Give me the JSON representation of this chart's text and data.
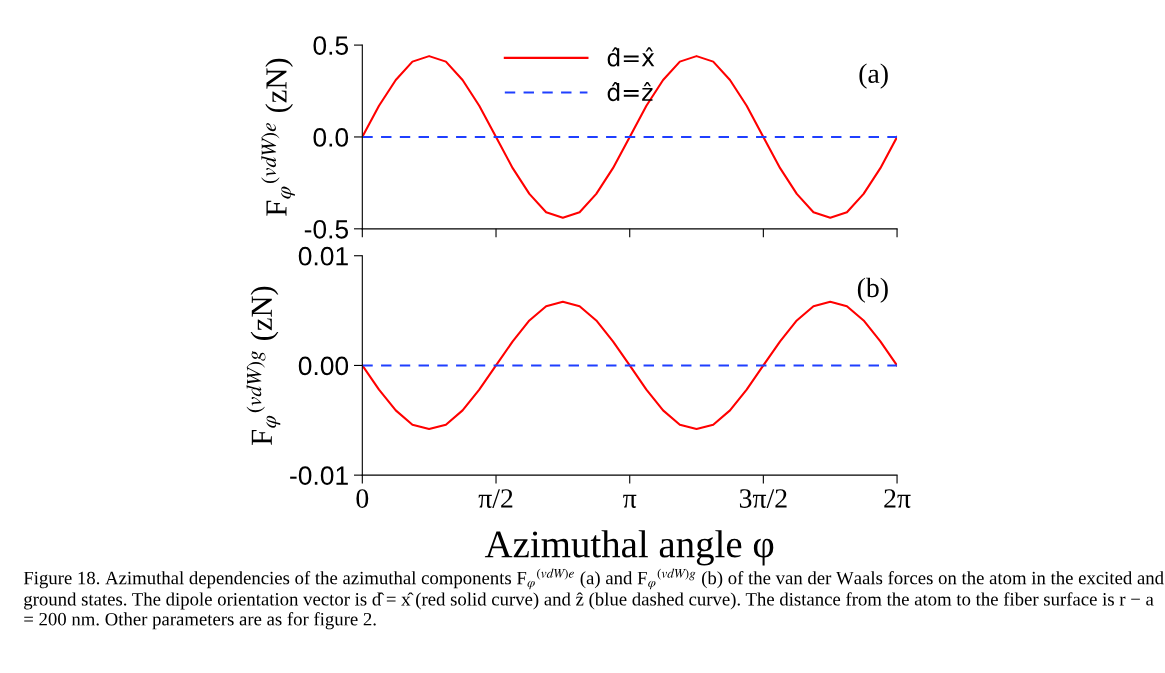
{
  "chart_data": [
    {
      "type": "line",
      "ylabel": "F$_{φ}$$^{(vdW)e}$ (zN)",
      "annotations": [
        "(a)"
      ],
      "x": [
        0,
        0.196,
        0.393,
        0.589,
        0.785,
        0.982,
        1.178,
        1.374,
        1.571,
        1.767,
        1.963,
        2.16,
        2.356,
        2.553,
        2.749,
        2.945,
        3.142,
        3.338,
        3.534,
        3.731,
        3.927,
        4.123,
        4.32,
        4.516,
        4.712,
        4.909,
        5.105,
        5.301,
        5.498,
        5.694,
        5.89,
        6.087,
        6.283
      ],
      "series": [
        {
          "name": "d̂=x̂",
          "color": "#ff0000",
          "line_style": "solid",
          "values": [
            0,
            0.17,
            0.31,
            0.41,
            0.44,
            0.41,
            0.31,
            0.17,
            0,
            -0.17,
            -0.31,
            -0.41,
            -0.44,
            -0.41,
            -0.31,
            -0.17,
            0,
            0.17,
            0.31,
            0.41,
            0.44,
            0.41,
            0.31,
            0.17,
            0,
            -0.17,
            -0.31,
            -0.41,
            -0.44,
            -0.41,
            -0.31,
            -0.17,
            0
          ]
        },
        {
          "name": "d̂=ẑ",
          "color": "#1f3fff",
          "line_style": "dashed",
          "values": [
            0,
            0,
            0,
            0,
            0,
            0,
            0,
            0,
            0,
            0,
            0,
            0,
            0,
            0,
            0,
            0,
            0,
            0,
            0,
            0,
            0,
            0,
            0,
            0,
            0,
            0,
            0,
            0,
            0,
            0,
            0,
            0,
            0
          ]
        }
      ],
      "xlim": [
        0,
        6.283
      ],
      "xticks": [
        0,
        1.571,
        3.142,
        4.712,
        6.283
      ],
      "ylim": [
        -0.5,
        0.5
      ],
      "yticks": [
        {
          "value": -0.5,
          "label": "-0.5"
        },
        {
          "value": 0,
          "label": "0.0"
        },
        {
          "value": 0.5,
          "label": "0.5"
        }
      ],
      "tick_labels": "y",
      "legend": "top center",
      "grid": false
    },
    {
      "type": "line",
      "ylabel": "F$_{φ}$$^{(vdW)g}$ (zN)",
      "xlabel": "Azimuthal angle φ",
      "annotations": [
        "(b)",
        "Figure 18. Azimuthal dependencies of the azimuthal components F$_{φ}$$^{(vdW)e}$ (a) and F$_{φ}$$^{(vdW)g}$ (b) of the van der Waals forces on the atom in the excited and ground states. The dipole orientation vector is d̂ = x̂ (red solid curve) and ẑ (blue dashed curve). The distance from the atom to the fiber surface is r − a = 200 nm. Other parameters are as for figure 2."
      ],
      "x": [
        0,
        0.196,
        0.393,
        0.589,
        0.785,
        0.982,
        1.178,
        1.374,
        1.571,
        1.767,
        1.963,
        2.16,
        2.356,
        2.553,
        2.749,
        2.945,
        3.142,
        3.338,
        3.534,
        3.731,
        3.927,
        4.123,
        4.32,
        4.516,
        4.712,
        4.909,
        5.105,
        5.301,
        5.498,
        5.694,
        5.89,
        6.087,
        6.283
      ],
      "series": [
        {
          "color": "#ff0000",
          "line_style": "solid",
          "values": [
            0,
            -0.0022,
            -0.0041,
            -0.0054,
            -0.0058,
            -0.0054,
            -0.0041,
            -0.0022,
            0,
            0.0022,
            0.0041,
            0.0054,
            0.0058,
            0.0054,
            0.0041,
            0.0022,
            0,
            -0.0022,
            -0.0041,
            -0.0054,
            -0.0058,
            -0.0054,
            -0.0041,
            -0.0022,
            0,
            0.0022,
            0.0041,
            0.0054,
            0.0058,
            0.0054,
            0.0041,
            0.0022,
            0
          ]
        },
        {
          "color": "#1f3fff",
          "line_style": "dashed",
          "values": [
            0,
            0,
            0,
            0,
            0,
            0,
            0,
            0,
            0,
            0,
            0,
            0,
            0,
            0,
            0,
            0,
            0,
            0,
            0,
            0,
            0,
            0,
            0,
            0,
            0,
            0,
            0,
            0,
            0,
            0,
            0,
            0,
            0
          ]
        }
      ],
      "xlim": [
        0,
        6.283
      ],
      "xticks": [
        {
          "value": 0,
          "label": "0"
        },
        {
          "value": 1.571,
          "label": "π/2"
        },
        {
          "value": 3.142,
          "label": "π"
        },
        {
          "value": 4.712,
          "label": "3π/2"
        },
        {
          "value": 6.283,
          "label": "2π"
        }
      ],
      "ylim": [
        -0.01,
        0.01
      ],
      "yticks": [
        {
          "value": -0.01,
          "label": "-0.01"
        },
        {
          "value": 0,
          "label": "0.00"
        },
        {
          "value": 0.01,
          "label": "0.01"
        }
      ],
      "grid": false
    }
  ]
}
